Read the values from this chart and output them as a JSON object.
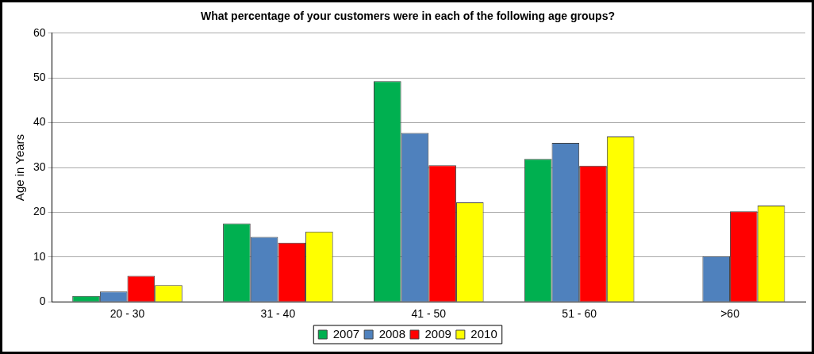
{
  "chart_data": {
    "type": "bar",
    "title": "What percentage of your customers were in each of the following age groups?",
    "ylabel": "Age in Years",
    "categories": [
      "20 - 30",
      "31 - 40",
      "41 - 50",
      "51 - 60",
      ">60"
    ],
    "series": [
      {
        "name": "2007",
        "color": "#00b050",
        "values": [
          1.3,
          17.5,
          49.3,
          31.9,
          null
        ]
      },
      {
        "name": "2008",
        "color": "#4f81bd",
        "values": [
          2.3,
          14.5,
          37.7,
          35.5,
          10.2
        ]
      },
      {
        "name": "2009",
        "color": "#ff0000",
        "values": [
          5.8,
          13.2,
          30.5,
          30.4,
          20.2
        ]
      },
      {
        "name": "2010",
        "color": "#ffff00",
        "values": [
          3.7,
          15.7,
          22.2,
          36.9,
          21.5
        ]
      }
    ],
    "ylim": [
      0,
      60
    ],
    "yticks": [
      0,
      10,
      20,
      30,
      40,
      50,
      60
    ],
    "grid": "y",
    "legend": "bottom"
  }
}
